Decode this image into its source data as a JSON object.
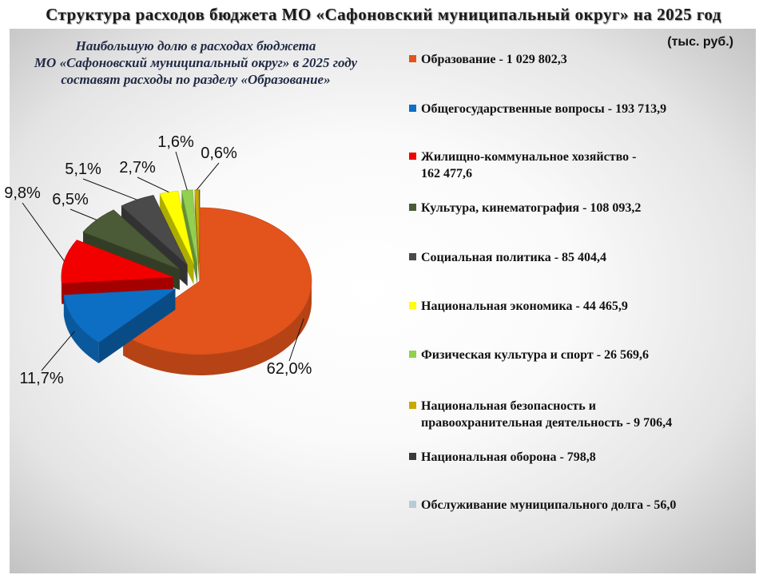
{
  "title": "Структура расходов бюджета  МО «Сафоновский муниципальный округ» на  2025 год",
  "subtitle_lines": [
    "Наибольшую долю в расходах бюджета",
    "МО «Сафоновский муниципальный округ» в 2025 году",
    "составят расходы по разделу «Образование»"
  ],
  "unit_label": "(тыс. руб.)",
  "chart_data": {
    "type": "pie",
    "unit": "тыс. руб.",
    "slices": [
      {
        "category": "Образование",
        "value": 1029802.3,
        "value_text": "1 029 802,3",
        "percent": 62.0,
        "percent_label": "62,0%",
        "color": "#e2541c",
        "legend_lines": [
          "Образование - 1 029 802,3"
        ]
      },
      {
        "category": "Общегосударственные вопросы",
        "value": 193713.9,
        "value_text": "193 713,9",
        "percent": 11.7,
        "percent_label": "11,7%",
        "color": "#0d6fc4",
        "legend_lines": [
          "Общегосударственные вопросы - 193 713,9"
        ]
      },
      {
        "category": "Жилищно-коммунальное хозяйство",
        "value": 162477.6,
        "value_text": "162 477,6",
        "percent": 9.8,
        "percent_label": "9,8%",
        "color": "#f20000",
        "legend_lines": [
          "Жилищно-коммунальное хозяйство -",
          "162 477,6"
        ]
      },
      {
        "category": "Культура, кинематография",
        "value": 108093.2,
        "value_text": "108 093,2",
        "percent": 6.5,
        "percent_label": "6,5%",
        "color": "#4b5a37",
        "legend_lines": [
          "Культура, кинематография - 108 093,2"
        ]
      },
      {
        "category": "Социальная политика",
        "value": 85404.4,
        "value_text": "85 404,4",
        "percent": 5.1,
        "percent_label": "5,1%",
        "color": "#4a4a4a",
        "legend_lines": [
          "Социальная политика - 85 404,4"
        ]
      },
      {
        "category": "Национальная экономика",
        "value": 44465.9,
        "value_text": "44 465,9",
        "percent": 2.7,
        "percent_label": "2,7%",
        "color": "#ffff00",
        "legend_lines": [
          "Национальная экономика -      44 465,9"
        ]
      },
      {
        "category": "Физическая культура и спорт",
        "value": 26569.6,
        "value_text": "26 569,6",
        "percent": 1.6,
        "percent_label": "1,6%",
        "color": "#92d050",
        "legend_lines": [
          "Физическая культура и спорт -   26 569,6"
        ]
      },
      {
        "category": "Национальная безопасность и правоохранительная деятельность",
        "value": 9706.4,
        "value_text": "9 706,4",
        "percent": 0.6,
        "percent_label": "0,6%",
        "color": "#c9a800",
        "legend_lines": [
          "Национальная безопасность и",
          "правоохранительная деятельность -  9 706,4"
        ]
      },
      {
        "category": "Национальная оборона",
        "value": 798.8,
        "value_text": "798,8",
        "percent": 0.0,
        "percent_label": "",
        "color": "#3a3a3a",
        "legend_lines": [
          "Национальная оборона -  798,8"
        ]
      },
      {
        "category": "Обслуживание муниципального  долга",
        "value": 56.0,
        "value_text": "56,0",
        "percent": 0.0,
        "percent_label": "",
        "color": "#b7ccd9",
        "legend_lines": [
          "Обслуживание муниципального  долга -  56,0"
        ]
      }
    ]
  }
}
